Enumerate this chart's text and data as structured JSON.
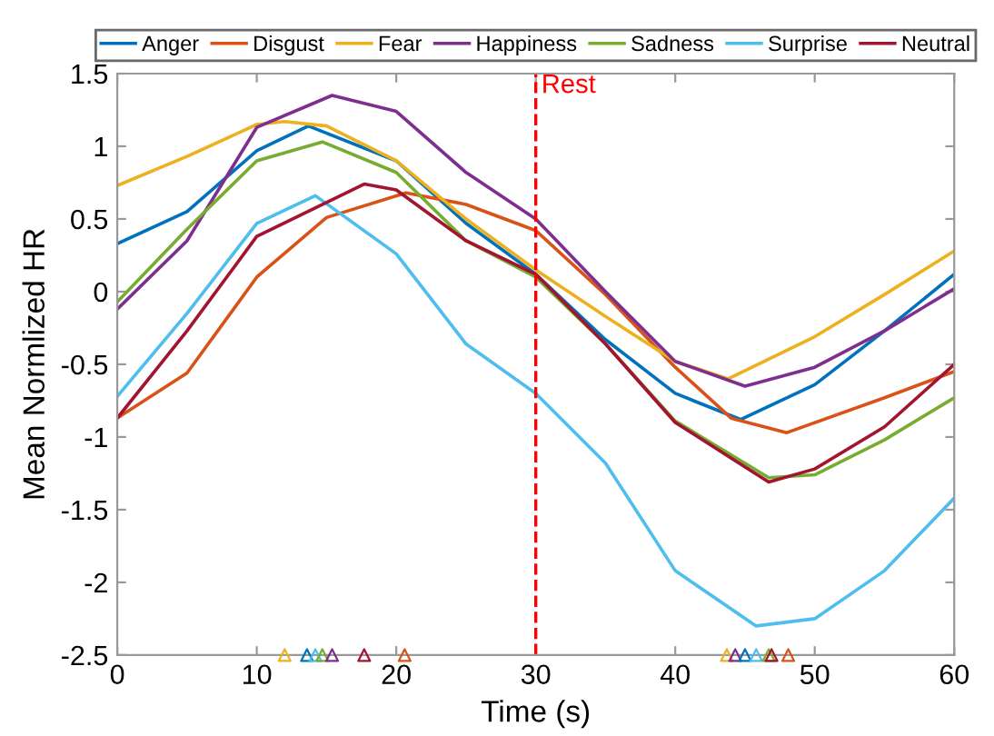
{
  "chart_data": {
    "type": "line",
    "xlabel": "Time (s)",
    "ylabel": "Mean Normlized HR",
    "xlim": [
      0,
      60
    ],
    "xticks": [
      0,
      10,
      20,
      30,
      40,
      50,
      60
    ],
    "ylim": [
      -2.5,
      1.5
    ],
    "yticks": [
      -2.5,
      -2,
      -1.5,
      -1,
      -0.5,
      0,
      0.5,
      1,
      1.5
    ],
    "grid": false,
    "legend": "top",
    "line_style": "solid",
    "marker": "none",
    "ref_lines": [
      {
        "axis": "x",
        "value": 30,
        "label": "Rest",
        "color": "#ff0000",
        "line_style": "dashed"
      }
    ],
    "series": [
      {
        "name": "Anger",
        "color": "#0072bd",
        "x": [
          0,
          5,
          10,
          13.7,
          20,
          25,
          30,
          35,
          40,
          44.7,
          50,
          55,
          60
        ],
        "values": [
          0.33,
          0.55,
          0.97,
          1.14,
          0.9,
          0.47,
          0.12,
          -0.33,
          -0.7,
          -0.88,
          -0.64,
          -0.27,
          0.12
        ]
      },
      {
        "name": "Disgust",
        "color": "#d95319",
        "x": [
          0,
          5,
          10,
          15,
          20.7,
          25,
          30,
          35,
          40,
          44,
          48,
          55,
          60
        ],
        "values": [
          -0.87,
          -0.56,
          0.1,
          0.51,
          0.68,
          0.6,
          0.42,
          -0.02,
          -0.52,
          -0.87,
          -0.97,
          -0.73,
          -0.55
        ]
      },
      {
        "name": "Fear",
        "color": "#edb120",
        "x": [
          0,
          5,
          10,
          12,
          15,
          20,
          25,
          30,
          35,
          40,
          43.8,
          50,
          55,
          60
        ],
        "values": [
          0.73,
          0.93,
          1.15,
          1.17,
          1.14,
          0.9,
          0.5,
          0.15,
          -0.17,
          -0.48,
          -0.6,
          -0.31,
          -0.02,
          0.28
        ]
      },
      {
        "name": "Happiness",
        "color": "#7e2f8e",
        "x": [
          0,
          5,
          10,
          15.4,
          20,
          25,
          30,
          35,
          40,
          45,
          50,
          55,
          60
        ],
        "values": [
          -0.12,
          0.35,
          1.13,
          1.35,
          1.24,
          0.82,
          0.5,
          0,
          -0.48,
          -0.65,
          -0.52,
          -0.27,
          0.02
        ]
      },
      {
        "name": "Sadness",
        "color": "#77ac30",
        "x": [
          0,
          5,
          10,
          14.7,
          20,
          25,
          30,
          35,
          40,
          46.7,
          50,
          55,
          60
        ],
        "values": [
          -0.07,
          0.43,
          0.9,
          1.03,
          0.82,
          0.35,
          0.1,
          -0.36,
          -0.89,
          -1.28,
          -1.26,
          -1.02,
          -0.73
        ]
      },
      {
        "name": "Surprise",
        "color": "#4dbeee",
        "x": [
          0,
          5,
          10,
          14.2,
          20,
          25,
          30,
          35,
          40,
          45.8,
          50,
          55,
          60
        ],
        "values": [
          -0.72,
          -0.15,
          0.47,
          0.66,
          0.26,
          -0.36,
          -0.7,
          -1.18,
          -1.92,
          -2.3,
          -2.25,
          -1.92,
          -1.42
        ]
      },
      {
        "name": "Neutral",
        "color": "#a2142f",
        "x": [
          0,
          5,
          10,
          17.7,
          20,
          25,
          30,
          35,
          40,
          46.7,
          50,
          55,
          60
        ],
        "values": [
          -0.87,
          -0.27,
          0.38,
          0.74,
          0.7,
          0.35,
          0.12,
          -0.36,
          -0.9,
          -1.31,
          -1.22,
          -0.93,
          -0.5
        ]
      },
      {
        "type": "scatter",
        "marker": "triangle",
        "x": [
          12,
          13.6,
          14.2,
          14.7,
          15.4,
          17.7,
          20.6
        ],
        "values": [
          -2.5,
          -2.5,
          -2.5,
          -2.5,
          -2.5,
          -2.5,
          -2.5
        ],
        "colors": [
          "#edb120",
          "#0072bd",
          "#4dbeee",
          "#77ac30",
          "#7e2f8e",
          "#a2142f",
          "#d95319"
        ]
      },
      {
        "type": "scatter",
        "marker": "triangle",
        "x": [
          43.7,
          44.3,
          45,
          45.8,
          46.7,
          46.9,
          48.1
        ],
        "values": [
          -2.5,
          -2.5,
          -2.5,
          -2.5,
          -2.5,
          -2.5,
          -2.5
        ],
        "colors": [
          "#edb120",
          "#7e2f8e",
          "#0072bd",
          "#4dbeee",
          "#77ac30",
          "#a2142f",
          "#d95319"
        ]
      }
    ]
  }
}
